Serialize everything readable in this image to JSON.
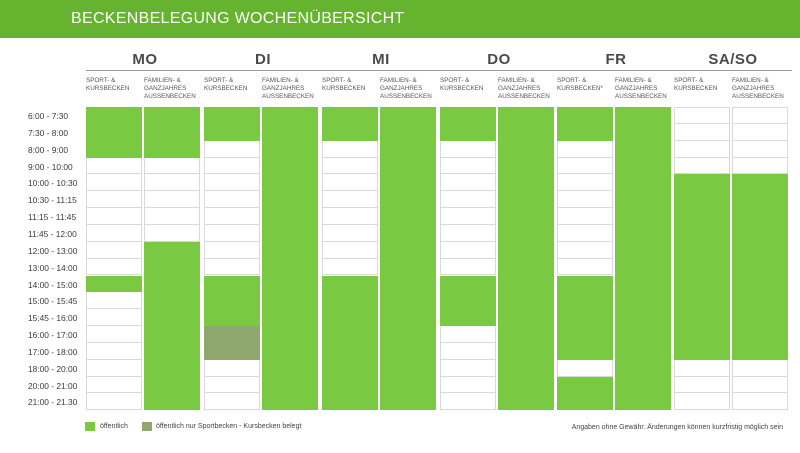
{
  "header": {
    "title": "BECKENBELEGUNG WOCHENÜBERSICHT"
  },
  "colors": {
    "header_bg": "#65b32e",
    "public": "#7ac943",
    "partial": "#8ea86e",
    "grid": "#d9d9d9"
  },
  "times": [
    "6:00 - 7:30",
    "7:30 - 8:00",
    "8:00 - 9:00",
    "9:00 - 10:00",
    "10:00 - 10:30",
    "10:30 - 11:15",
    "11:15 - 11:45",
    "11:45 - 12:00",
    "12:00 - 13:00",
    "13:00 - 14:00",
    "14:00 - 15:00",
    "15:00 - 15:45",
    "15:45 - 16:00",
    "16:00 - 17:00",
    "17:00 - 18:00",
    "18:00 - 20:00",
    "20:00 - 21:00",
    "21:00 - 21.30"
  ],
  "days": [
    {
      "label": "MO",
      "sport_label": "SPORT- &\nKURSBECKEN",
      "family_label": "FAMILIEN- &\nGANZJAHRES\nAUßENBECKEN",
      "sport": [
        {
          "from": 0,
          "to": 3,
          "type": "public"
        },
        {
          "from": 10,
          "to": 11,
          "type": "public"
        }
      ],
      "family": [
        {
          "from": 0,
          "to": 3,
          "type": "public"
        },
        {
          "from": 8,
          "to": 18,
          "type": "public"
        }
      ]
    },
    {
      "label": "DI",
      "sport_label": "SPORT- &\nKURSBECKEN",
      "family_label": "FAMILIEN- &\nGANZJAHRES\nAUßENBECKEN",
      "sport": [
        {
          "from": 0,
          "to": 2,
          "type": "public"
        },
        {
          "from": 10,
          "to": 13,
          "type": "public"
        },
        {
          "from": 13,
          "to": 15,
          "type": "partial"
        }
      ],
      "family": [
        {
          "from": 0,
          "to": 18,
          "type": "public"
        }
      ]
    },
    {
      "label": "MI",
      "sport_label": "SPORT- &\nKURSBECKEN",
      "family_label": "FAMILIEN- &\nGANZJAHRES\nAUßENBECKEN",
      "sport": [
        {
          "from": 0,
          "to": 2,
          "type": "public"
        },
        {
          "from": 10,
          "to": 18,
          "type": "public"
        }
      ],
      "family": [
        {
          "from": 0,
          "to": 18,
          "type": "public"
        }
      ]
    },
    {
      "label": "DO",
      "sport_label": "SPORT- &\nKURSBECKEN",
      "family_label": "FAMILIEN- &\nGANZJAHRES\nAUßENBECKEN",
      "sport": [
        {
          "from": 0,
          "to": 2,
          "type": "public"
        },
        {
          "from": 10,
          "to": 13,
          "type": "public"
        }
      ],
      "family": [
        {
          "from": 0,
          "to": 18,
          "type": "public"
        }
      ]
    },
    {
      "label": "FR",
      "sport_label": "SPORT- &\nKURSBECKEN*",
      "family_label": "FAMILIEN- &\nGANZJAHRES\nAUßENBECKEN",
      "sport": [
        {
          "from": 0,
          "to": 2,
          "type": "public"
        },
        {
          "from": 10,
          "to": 15,
          "type": "public"
        },
        {
          "from": 16,
          "to": 18,
          "type": "public"
        }
      ],
      "family": [
        {
          "from": 0,
          "to": 18,
          "type": "public"
        }
      ]
    },
    {
      "label": "SA/SO",
      "sport_label": "SPORT- &\nKURSBECKEN",
      "family_label": "FAMILIEN- &\nGANZJAHRES\nAUßENBECKEN",
      "sport": [
        {
          "from": 4,
          "to": 15,
          "type": "public"
        }
      ],
      "family": [
        {
          "from": 4,
          "to": 15,
          "type": "public"
        }
      ]
    }
  ],
  "legend": {
    "public_label": "öffentlich",
    "partial_label": "öffentlich nur Sportbecken - Kursbecken belegt"
  },
  "disclaimer": "Angaben ohne Gewähr. Änderungen können kurzfristig möglich sein"
}
